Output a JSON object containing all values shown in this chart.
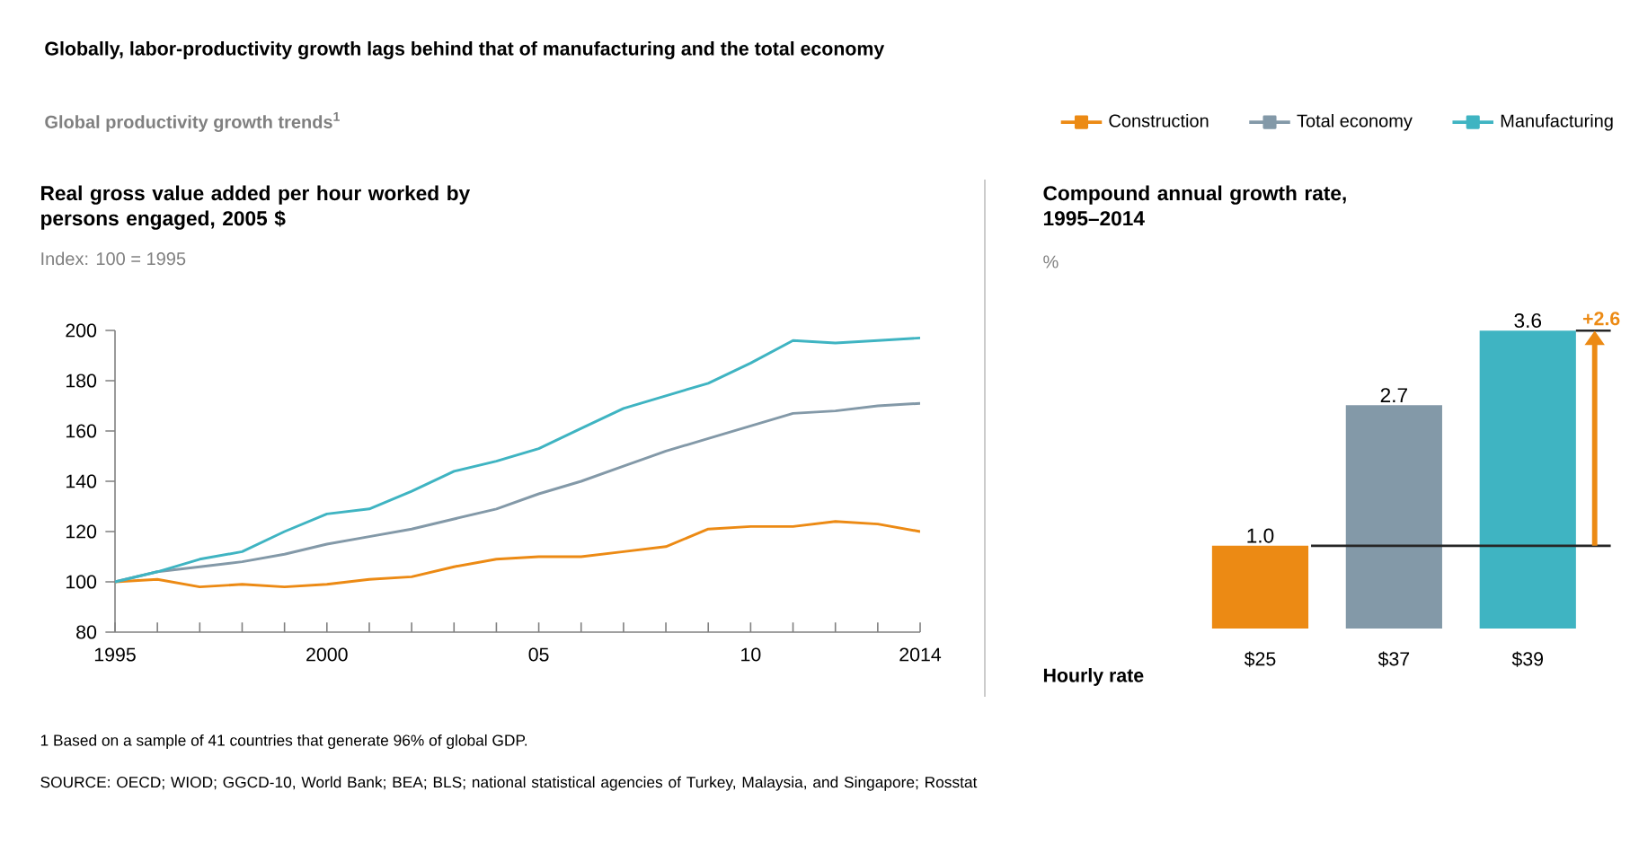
{
  "chart_data": [
    {
      "type": "line",
      "title": "Globally, labor-productivity growth lags behind that of manufacturing and the total economy",
      "subtitle": "Global productivity growth trends$^{1}$",
      "ylabel": "Real gross value added per hour worked by persons engaged, 2005 $",
      "x": [
        1995,
        1996,
        1997,
        1998,
        1999,
        2000,
        2001,
        2002,
        2003,
        2004,
        2005,
        2006,
        2007,
        2008,
        2009,
        2010,
        2011,
        2012,
        2013,
        2014
      ],
      "series": [
        {
          "name": "Construction",
          "color": "#ec8a14",
          "values": [
            100,
            101,
            98,
            99,
            98,
            99,
            101,
            102,
            106,
            109,
            110,
            110,
            112,
            114,
            121,
            122,
            122,
            124,
            123,
            120
          ]
        },
        {
          "name": "Total economy",
          "color": "#8399a8",
          "values": [
            100,
            104,
            106,
            108,
            111,
            115,
            118,
            121,
            125,
            129,
            135,
            140,
            146,
            152,
            157,
            162,
            167,
            168,
            170,
            171
          ]
        },
        {
          "name": "Manufacturing",
          "color": "#3fb4c2",
          "values": [
            100,
            104,
            109,
            112,
            120,
            127,
            129,
            136,
            144,
            148,
            153,
            161,
            169,
            174,
            179,
            187,
            196,
            195,
            196,
            197
          ]
        }
      ],
      "xlim": [
        1995,
        2014
      ],
      "xticks": [
        1995,
        {
          "value": 1996,
          "label": null
        },
        {
          "value": 1997,
          "label": null
        },
        {
          "value": 1998,
          "label": null
        },
        {
          "value": 1999,
          "label": null
        },
        2000,
        {
          "value": 2001,
          "label": null
        },
        {
          "value": 2002,
          "label": null
        },
        {
          "value": 2003,
          "label": null
        },
        {
          "value": 2004,
          "label": null
        },
        {
          "value": 2005,
          "label": "05"
        },
        {
          "value": 2006,
          "label": null
        },
        {
          "value": 2007,
          "label": null
        },
        {
          "value": 2008,
          "label": null
        },
        {
          "value": 2009,
          "label": null
        },
        {
          "value": 2010,
          "label": "10"
        },
        {
          "value": 2011,
          "label": null
        },
        {
          "value": 2012,
          "label": null
        },
        {
          "value": 2013,
          "label": null
        },
        2014
      ],
      "ylim": [
        80,
        200
      ],
      "yticks": [
        80,
        100,
        120,
        140,
        160,
        180,
        200
      ],
      "grid": false,
      "legend": "top",
      "annotations": [
        "Index: 100 = 1995",
        "1  Based on a sample of 41 countries that generate 96% of global GDP.",
        "SOURCE: OECD; WIOD; GGCD-10, World Bank; BEA; BLS; national statistical agencies of Turkey, Malaysia, and Singapore; Rosstat"
      ]
    },
    {
      "type": "bar",
      "title": "Compound annual growth rate, 1995–2014",
      "ylabel": "%",
      "categories": [
        "$25",
        "$37",
        "$39"
      ],
      "values": [
        1.0,
        2.7,
        3.6
      ],
      "colors": [
        "#ec8a14",
        "#8399a8",
        "#3fb4c2"
      ],
      "value_labels": [
        "1.0",
        "2.7",
        "3.6"
      ],
      "tick_labels": "x",
      "ref_lines": [
        {
          "axis": "y",
          "value": 1.0
        }
      ],
      "annotations": [
        "Hourly rate",
        "+2.6"
      ]
    }
  ]
}
